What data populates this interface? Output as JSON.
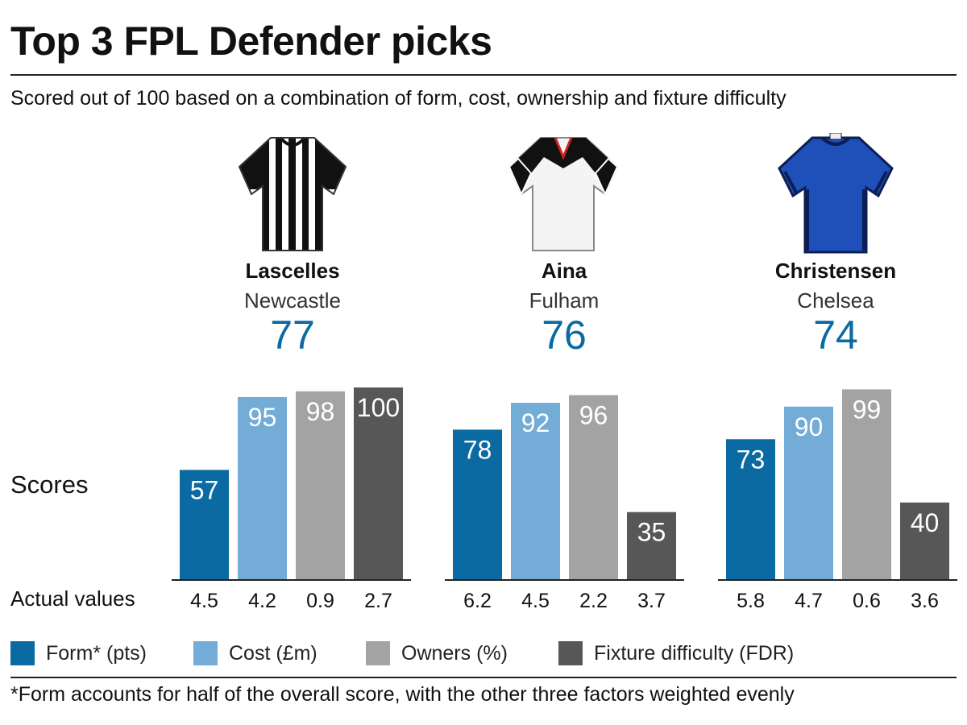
{
  "title": "Top 3 FPL Defender picks",
  "subtitle": "Scored out of 100 based on a combination of form, cost, ownership and fixture difficulty",
  "scores_label": "Scores",
  "actual_values_label": "Actual values",
  "footnote": "*Form accounts for half of the overall score, with the other three factors weighted evenly",
  "players": [
    {
      "name": "Lascelles",
      "team": "Newcastle",
      "overall": "77",
      "shirt": "newcastle-shirt-icon"
    },
    {
      "name": "Aina",
      "team": "Fulham",
      "overall": "76",
      "shirt": "fulham-shirt-icon"
    },
    {
      "name": "Christensen",
      "team": "Chelsea",
      "overall": "74",
      "shirt": "chelsea-shirt-icon"
    }
  ],
  "colors": {
    "form": "#0a6aa1",
    "cost": "#73acd6",
    "owners": "#a3a3a3",
    "fixture": "#575757",
    "score_text": "#0a6aa1"
  },
  "legend": [
    {
      "label": "Form* (pts)",
      "color": "#0a6aa1"
    },
    {
      "label": "Cost (£m)",
      "color": "#73acd6"
    },
    {
      "label": "Owners (%)",
      "color": "#a3a3a3"
    },
    {
      "label": "Fixture difficulty (FDR)",
      "color": "#575757"
    }
  ],
  "chart_data": {
    "type": "bar",
    "categories": [
      "Lascelles",
      "Aina",
      "Christensen"
    ],
    "ylim": [
      0,
      100
    ],
    "series": [
      {
        "name": "Form* (pts)",
        "values": [
          57,
          78,
          73
        ],
        "actual": [
          "4.5",
          "6.2",
          "5.8"
        ]
      },
      {
        "name": "Cost (£m)",
        "values": [
          95,
          92,
          90
        ],
        "actual": [
          "4.2",
          "4.5",
          "4.7"
        ]
      },
      {
        "name": "Owners (%)",
        "values": [
          98,
          96,
          99
        ],
        "actual": [
          "0.9",
          "2.2",
          "0.6"
        ]
      },
      {
        "name": "Fixture difficulty (FDR)",
        "values": [
          100,
          35,
          40
        ],
        "actual": [
          "2.7",
          "3.7",
          "3.6"
        ]
      }
    ]
  }
}
